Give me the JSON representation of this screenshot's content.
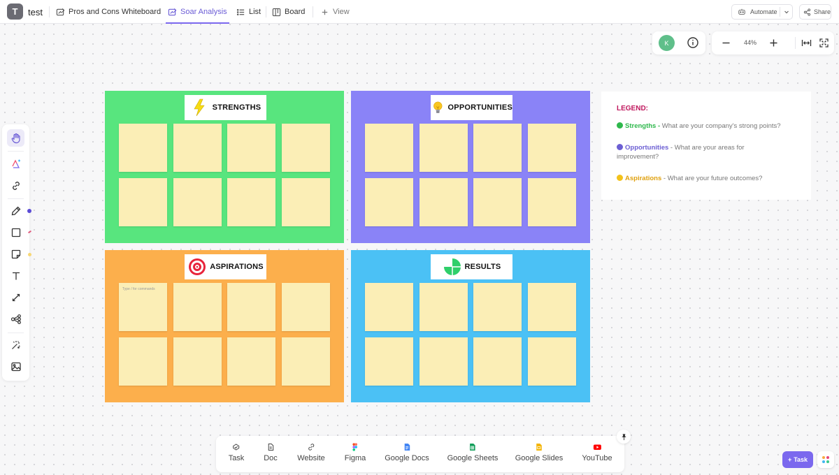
{
  "workspace": {
    "initial": "T",
    "name": "test"
  },
  "tabs": [
    {
      "label": "Pros and Cons Whiteboard",
      "icon": "whiteboard-icon"
    },
    {
      "label": "Soar Analysis",
      "icon": "whiteboard-icon",
      "active": true
    },
    {
      "label": "List",
      "icon": "list-icon"
    },
    {
      "label": "Board",
      "icon": "board-icon"
    },
    {
      "label": "View",
      "icon": "plus-icon"
    }
  ],
  "header_actions": {
    "automate_label": "Automate",
    "share_label": "Share"
  },
  "presence": {
    "avatar_initial": "K",
    "avatar_color": "#5fbf8a"
  },
  "zoom": {
    "value": "44%"
  },
  "quadrants": {
    "strengths": {
      "title": "STRENGTHS",
      "color": "#58e57e",
      "icon": "lightning-bolt-icon"
    },
    "opportunities": {
      "title": "OPPORTUNITIES",
      "color": "#8a83f7",
      "icon": "light-bulb-icon"
    },
    "aspirations": {
      "title": "ASPIRATIONS",
      "color": "#fcaf4c",
      "icon": "target-icon",
      "note_placeholder": "Type / for commands"
    },
    "results": {
      "title": "RESULTS",
      "color": "#4bc1f5",
      "icon": "pie-chart-icon"
    }
  },
  "legend": {
    "title": "LEGEND:",
    "items": [
      {
        "name": "Strengths",
        "separator": " - ",
        "text": "What are your company's strong points?",
        "color": "#2eb84c"
      },
      {
        "name": "Opportunities",
        "separator": " - ",
        "text": "What are your areas for improvement?",
        "color": "#6c5fd3"
      },
      {
        "name": "Aspirations",
        "separator": " - ",
        "text": "What are your future outcomes?",
        "color": "#e0a10f"
      }
    ]
  },
  "dock": [
    {
      "label": "Task",
      "icon": "task-icon"
    },
    {
      "label": "Doc",
      "icon": "doc-icon"
    },
    {
      "label": "Website",
      "icon": "link-icon"
    },
    {
      "label": "Figma",
      "icon": "figma-icon"
    },
    {
      "label": "Google Docs",
      "icon": "google-docs-icon"
    },
    {
      "label": "Google Sheets",
      "icon": "google-sheets-icon"
    },
    {
      "label": "Google Slides",
      "icon": "google-slides-icon"
    },
    {
      "label": "YouTube",
      "icon": "youtube-icon"
    }
  ],
  "task_button": {
    "label": "Task"
  },
  "colors": {
    "accent": "#7b68ee",
    "note": "#fbeeb6"
  }
}
